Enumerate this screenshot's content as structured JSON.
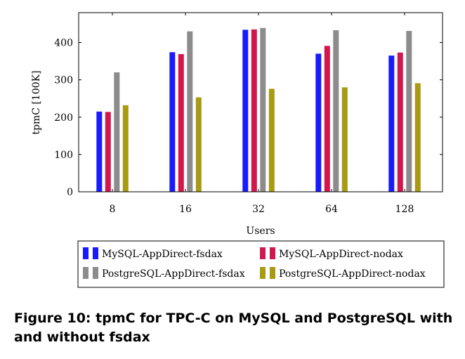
{
  "caption": "Figure 10: tpmC for TPC-C on MySQL and PostgreSQL with and without fsdax",
  "chart_data": {
    "type": "bar",
    "title": "",
    "xlabel": "Users",
    "ylabel": "tpmC [100K]",
    "categories": [
      "8",
      "16",
      "32",
      "64",
      "128"
    ],
    "ylim": [
      0,
      480
    ],
    "yticks": [
      0,
      100,
      200,
      300,
      400
    ],
    "grid": false,
    "legend_position": "bottom",
    "series": [
      {
        "name": "MySQL-AppDirect-fsdax",
        "color": "#1a1aff",
        "values": [
          215,
          374,
          434,
          370,
          365
        ]
      },
      {
        "name": "MySQL-AppDirect-nodax",
        "color": "#d0184f",
        "values": [
          214,
          369,
          435,
          391,
          373
        ]
      },
      {
        "name": "PostgreSQL-AppDirect-fsdax",
        "color": "#8c8c8c",
        "values": [
          320,
          430,
          439,
          433,
          431
        ]
      },
      {
        "name": "PostgreSQL-AppDirect-nodax",
        "color": "#a89a12",
        "values": [
          232,
          253,
          276,
          280,
          291
        ]
      }
    ]
  }
}
